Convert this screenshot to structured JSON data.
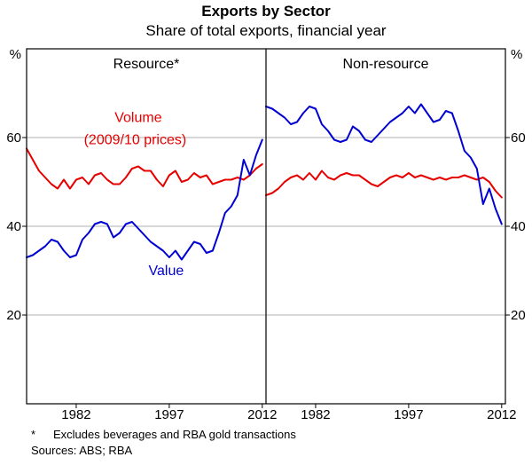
{
  "footnote": {
    "marker": "*",
    "text": "Excludes beverages and RBA gold transactions"
  },
  "sources": "Sources: ABS; RBA",
  "colors": {
    "volume_red": "#e60000",
    "value_blue": "#0000d2",
    "grid": "#b0b0b0",
    "axis": "#000000"
  },
  "chart_data": {
    "type": "line",
    "title": "Exports by Sector",
    "subtitle": "Share of total exports, financial year",
    "y_unit": "%",
    "ylim": [
      0,
      80
    ],
    "y_ticks": [
      20,
      40,
      60
    ],
    "x_ticks": [
      1982,
      1997,
      2012
    ],
    "x_label": "financial year",
    "grid": "horizontal",
    "legend_position": "in-plot annotations",
    "x": [
      1974,
      1975,
      1976,
      1977,
      1978,
      1979,
      1980,
      1981,
      1982,
      1983,
      1984,
      1985,
      1986,
      1987,
      1988,
      1989,
      1990,
      1991,
      1992,
      1993,
      1994,
      1995,
      1996,
      1997,
      1998,
      1999,
      2000,
      2001,
      2002,
      2003,
      2004,
      2005,
      2006,
      2007,
      2008,
      2009,
      2010,
      2011,
      2012
    ],
    "panels": [
      {
        "title": "Resource*",
        "series": [
          {
            "name": "Volume (2009/10 prices)",
            "color": "#e60000",
            "values": [
              57.5,
              55,
              52.5,
              51,
              49.5,
              48.5,
              50.5,
              48.5,
              50.5,
              51,
              49.5,
              51.5,
              52,
              50.5,
              49.5,
              49.5,
              51,
              53,
              53.5,
              52.5,
              52.5,
              50.5,
              49,
              51.5,
              52.5,
              50,
              50.5,
              52,
              51,
              51.5,
              49.5,
              50,
              50.5,
              50.5,
              51,
              50.5,
              51.5,
              53,
              54
            ]
          },
          {
            "name": "Value",
            "color": "#0000d2",
            "values": [
              33,
              33.5,
              34.5,
              35.5,
              37,
              36.5,
              34.5,
              33,
              33.5,
              37,
              38.5,
              40.5,
              41,
              40.5,
              37.5,
              38.5,
              40.5,
              41,
              39.5,
              38,
              36.5,
              35.5,
              34.5,
              33,
              34.5,
              32.5,
              34.5,
              36.5,
              36,
              34,
              34.5,
              38.5,
              43,
              44.5,
              47,
              55,
              51.5,
              56,
              59.5
            ]
          }
        ],
        "annotations": [
          {
            "text": "Volume",
            "x": 1992,
            "y": 63.5,
            "color": "#e60000"
          },
          {
            "text": "(2009/10 prices)",
            "x": 1991.5,
            "y": 58.5,
            "color": "#e60000"
          },
          {
            "text": "Value",
            "x": 1996.5,
            "y": 29,
            "color": "#0000d2"
          }
        ]
      },
      {
        "title": "Non-resource",
        "series": [
          {
            "name": "Volume (2009/10 prices)",
            "color": "#e60000",
            "values": [
              47,
              47.5,
              48.5,
              50,
              51,
              51.5,
              50.5,
              52,
              50.5,
              52.5,
              51,
              50.5,
              51.5,
              52,
              51.5,
              51.5,
              50.5,
              49.5,
              49,
              50,
              51,
              51.5,
              51,
              52,
              51,
              51.5,
              51,
              50.5,
              51,
              50.5,
              51,
              51,
              51.5,
              51,
              50.5,
              51,
              50,
              48,
              46.5
            ]
          },
          {
            "name": "Value",
            "color": "#0000d2",
            "values": [
              67,
              66.5,
              65.5,
              64.5,
              63,
              63.5,
              65.5,
              67,
              66.5,
              63,
              61.5,
              59.5,
              59,
              59.5,
              62.5,
              61.5,
              59.5,
              59,
              60.5,
              62,
              63.5,
              64.5,
              65.5,
              67,
              65.5,
              67.5,
              65.5,
              63.5,
              64,
              66,
              65.5,
              61.5,
              57,
              55.5,
              53,
              45,
              48.5,
              44,
              40.5
            ]
          }
        ],
        "annotations": []
      }
    ]
  }
}
